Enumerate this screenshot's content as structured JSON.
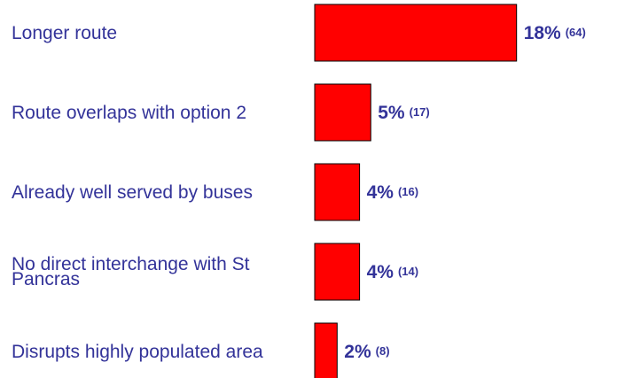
{
  "chart_data": {
    "type": "bar",
    "orientation": "horizontal",
    "categories": [
      "Longer route",
      "Route overlaps with option 2",
      "Already well served by buses",
      "No direct interchange with St Pancras",
      "Disrupts highly populated area"
    ],
    "values": [
      18,
      5,
      4,
      4,
      2
    ],
    "value_labels": [
      "18%",
      "5%",
      "4%",
      "4%",
      "2%"
    ],
    "counts": [
      64,
      17,
      16,
      14,
      8
    ],
    "count_labels": [
      "(64)",
      "(17)",
      "(16)",
      "(14)",
      "(8)"
    ],
    "color": "#ff0000"
  }
}
